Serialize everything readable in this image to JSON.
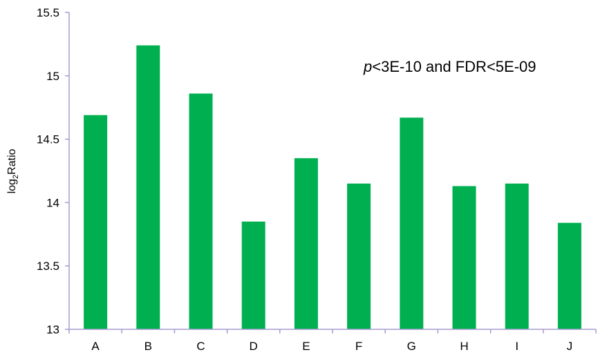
{
  "chart_data": {
    "type": "bar",
    "categories": [
      "A",
      "B",
      "C",
      "D",
      "E",
      "F",
      "G",
      "H",
      "I",
      "J"
    ],
    "values": [
      14.69,
      15.24,
      14.86,
      13.85,
      14.35,
      14.15,
      14.67,
      14.13,
      14.15,
      13.84
    ],
    "ylim": [
      13,
      15.5
    ],
    "yticks": [
      "13",
      "13.5",
      "14",
      "14.5",
      "15",
      "15.5"
    ],
    "ylabel": {
      "prefix": "log",
      "subscript": "2",
      "suffix": "Ratio"
    },
    "annotation": {
      "italic": "p",
      "rest": "<3E-10 and FDR<5E-09"
    },
    "title": "",
    "xlabel": "",
    "grid": false,
    "legend": "none",
    "bar_color": "#00b050",
    "axis_color": "#a79ad0"
  }
}
